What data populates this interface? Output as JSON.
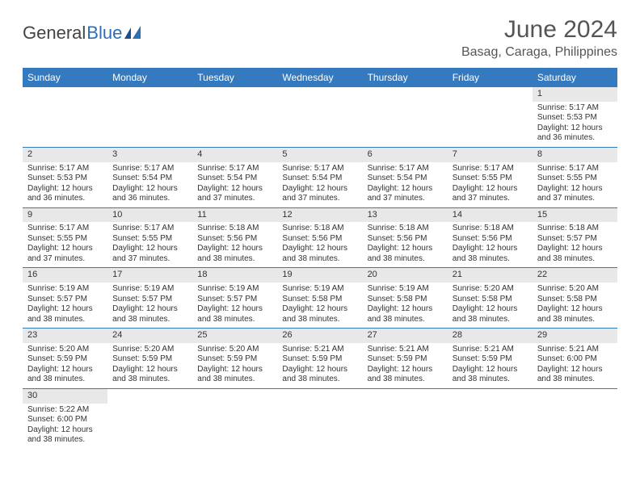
{
  "logo": {
    "general": "General",
    "blue": "Blue"
  },
  "title": "June 2024",
  "location": "Basag, Caraga, Philippines",
  "colors": {
    "header_bg": "#357abf",
    "header_text": "#ffffff",
    "daynum_bg": "#e8e8e8",
    "text": "#333333",
    "rule": "#357abf"
  },
  "fonts": {
    "title_size": 30,
    "location_size": 16,
    "weekday_size": 12,
    "daynum_size": 11,
    "body_size": 10
  },
  "weekdays": [
    "Sunday",
    "Monday",
    "Tuesday",
    "Wednesday",
    "Thursday",
    "Friday",
    "Saturday"
  ],
  "weeks": [
    [
      null,
      null,
      null,
      null,
      null,
      null,
      {
        "n": "1",
        "sr": "Sunrise: 5:17 AM",
        "ss": "Sunset: 5:53 PM",
        "d1": "Daylight: 12 hours",
        "d2": "and 36 minutes."
      }
    ],
    [
      {
        "n": "2",
        "sr": "Sunrise: 5:17 AM",
        "ss": "Sunset: 5:53 PM",
        "d1": "Daylight: 12 hours",
        "d2": "and 36 minutes."
      },
      {
        "n": "3",
        "sr": "Sunrise: 5:17 AM",
        "ss": "Sunset: 5:54 PM",
        "d1": "Daylight: 12 hours",
        "d2": "and 36 minutes."
      },
      {
        "n": "4",
        "sr": "Sunrise: 5:17 AM",
        "ss": "Sunset: 5:54 PM",
        "d1": "Daylight: 12 hours",
        "d2": "and 37 minutes."
      },
      {
        "n": "5",
        "sr": "Sunrise: 5:17 AM",
        "ss": "Sunset: 5:54 PM",
        "d1": "Daylight: 12 hours",
        "d2": "and 37 minutes."
      },
      {
        "n": "6",
        "sr": "Sunrise: 5:17 AM",
        "ss": "Sunset: 5:54 PM",
        "d1": "Daylight: 12 hours",
        "d2": "and 37 minutes."
      },
      {
        "n": "7",
        "sr": "Sunrise: 5:17 AM",
        "ss": "Sunset: 5:55 PM",
        "d1": "Daylight: 12 hours",
        "d2": "and 37 minutes."
      },
      {
        "n": "8",
        "sr": "Sunrise: 5:17 AM",
        "ss": "Sunset: 5:55 PM",
        "d1": "Daylight: 12 hours",
        "d2": "and 37 minutes."
      }
    ],
    [
      {
        "n": "9",
        "sr": "Sunrise: 5:17 AM",
        "ss": "Sunset: 5:55 PM",
        "d1": "Daylight: 12 hours",
        "d2": "and 37 minutes."
      },
      {
        "n": "10",
        "sr": "Sunrise: 5:17 AM",
        "ss": "Sunset: 5:55 PM",
        "d1": "Daylight: 12 hours",
        "d2": "and 37 minutes."
      },
      {
        "n": "11",
        "sr": "Sunrise: 5:18 AM",
        "ss": "Sunset: 5:56 PM",
        "d1": "Daylight: 12 hours",
        "d2": "and 38 minutes."
      },
      {
        "n": "12",
        "sr": "Sunrise: 5:18 AM",
        "ss": "Sunset: 5:56 PM",
        "d1": "Daylight: 12 hours",
        "d2": "and 38 minutes."
      },
      {
        "n": "13",
        "sr": "Sunrise: 5:18 AM",
        "ss": "Sunset: 5:56 PM",
        "d1": "Daylight: 12 hours",
        "d2": "and 38 minutes."
      },
      {
        "n": "14",
        "sr": "Sunrise: 5:18 AM",
        "ss": "Sunset: 5:56 PM",
        "d1": "Daylight: 12 hours",
        "d2": "and 38 minutes."
      },
      {
        "n": "15",
        "sr": "Sunrise: 5:18 AM",
        "ss": "Sunset: 5:57 PM",
        "d1": "Daylight: 12 hours",
        "d2": "and 38 minutes."
      }
    ],
    [
      {
        "n": "16",
        "sr": "Sunrise: 5:19 AM",
        "ss": "Sunset: 5:57 PM",
        "d1": "Daylight: 12 hours",
        "d2": "and 38 minutes."
      },
      {
        "n": "17",
        "sr": "Sunrise: 5:19 AM",
        "ss": "Sunset: 5:57 PM",
        "d1": "Daylight: 12 hours",
        "d2": "and 38 minutes."
      },
      {
        "n": "18",
        "sr": "Sunrise: 5:19 AM",
        "ss": "Sunset: 5:57 PM",
        "d1": "Daylight: 12 hours",
        "d2": "and 38 minutes."
      },
      {
        "n": "19",
        "sr": "Sunrise: 5:19 AM",
        "ss": "Sunset: 5:58 PM",
        "d1": "Daylight: 12 hours",
        "d2": "and 38 minutes."
      },
      {
        "n": "20",
        "sr": "Sunrise: 5:19 AM",
        "ss": "Sunset: 5:58 PM",
        "d1": "Daylight: 12 hours",
        "d2": "and 38 minutes."
      },
      {
        "n": "21",
        "sr": "Sunrise: 5:20 AM",
        "ss": "Sunset: 5:58 PM",
        "d1": "Daylight: 12 hours",
        "d2": "and 38 minutes."
      },
      {
        "n": "22",
        "sr": "Sunrise: 5:20 AM",
        "ss": "Sunset: 5:58 PM",
        "d1": "Daylight: 12 hours",
        "d2": "and 38 minutes."
      }
    ],
    [
      {
        "n": "23",
        "sr": "Sunrise: 5:20 AM",
        "ss": "Sunset: 5:59 PM",
        "d1": "Daylight: 12 hours",
        "d2": "and 38 minutes."
      },
      {
        "n": "24",
        "sr": "Sunrise: 5:20 AM",
        "ss": "Sunset: 5:59 PM",
        "d1": "Daylight: 12 hours",
        "d2": "and 38 minutes."
      },
      {
        "n": "25",
        "sr": "Sunrise: 5:20 AM",
        "ss": "Sunset: 5:59 PM",
        "d1": "Daylight: 12 hours",
        "d2": "and 38 minutes."
      },
      {
        "n": "26",
        "sr": "Sunrise: 5:21 AM",
        "ss": "Sunset: 5:59 PM",
        "d1": "Daylight: 12 hours",
        "d2": "and 38 minutes."
      },
      {
        "n": "27",
        "sr": "Sunrise: 5:21 AM",
        "ss": "Sunset: 5:59 PM",
        "d1": "Daylight: 12 hours",
        "d2": "and 38 minutes."
      },
      {
        "n": "28",
        "sr": "Sunrise: 5:21 AM",
        "ss": "Sunset: 5:59 PM",
        "d1": "Daylight: 12 hours",
        "d2": "and 38 minutes."
      },
      {
        "n": "29",
        "sr": "Sunrise: 5:21 AM",
        "ss": "Sunset: 6:00 PM",
        "d1": "Daylight: 12 hours",
        "d2": "and 38 minutes."
      }
    ],
    [
      {
        "n": "30",
        "sr": "Sunrise: 5:22 AM",
        "ss": "Sunset: 6:00 PM",
        "d1": "Daylight: 12 hours",
        "d2": "and 38 minutes."
      },
      null,
      null,
      null,
      null,
      null,
      null
    ]
  ]
}
